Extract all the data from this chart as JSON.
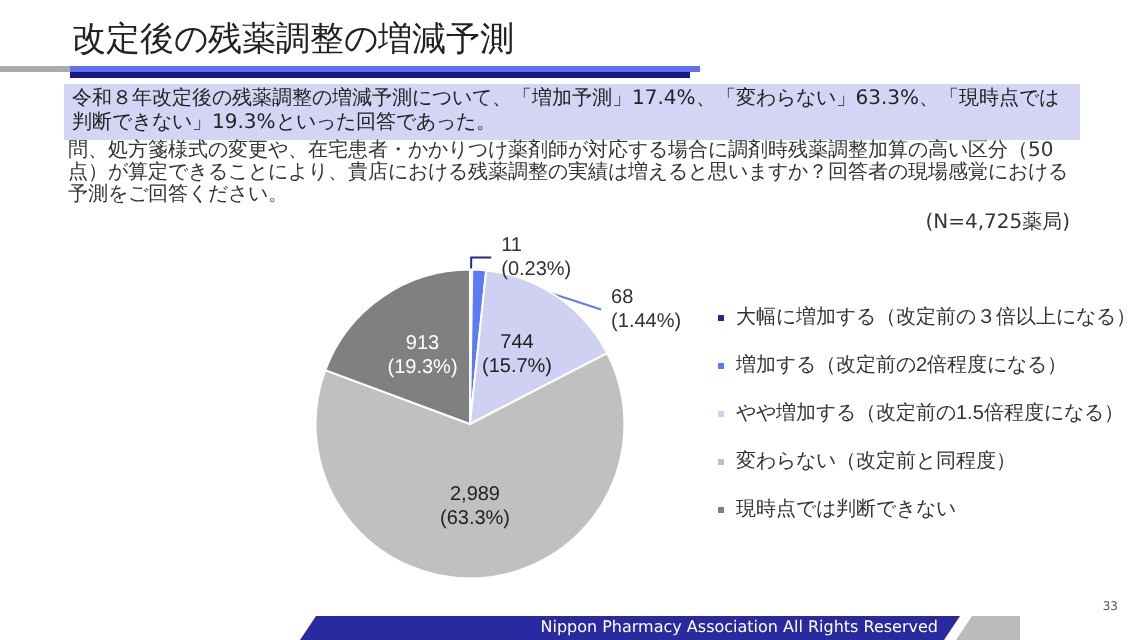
{
  "chart_data": {
    "type": "pie",
    "title": "改定後の残薬調整の増減予測",
    "subtitle": "令和８年改定後の残薬調整の増減予測について、「増加予測」17.4%、「変わらない」63.3%、「現時点では判断できない」19.3%といった回答であった。",
    "annotations": [
      "問、処方箋様式の変更や、在宅患者・かかりつけ薬剤師が対応する場合に調剤時残薬調整加算の高い区分（50点）が算定できることにより、貴店における残薬調整の実績は増えると思いますか？回答者の現場感覚における予測をご回答ください。",
      "(N=4,725薬局)",
      "Nippon Pharmacy Association All Rights Reserved",
      "33"
    ],
    "categories": [
      "大幅に増加する（改定前の３倍以上になる）",
      "増加する（改定前の2倍程度になる）",
      "やや増加する（改定前の1.5倍程度になる）",
      "変わらない（改定前と同程度）",
      "現時点では判断できない"
    ],
    "values": [
      11,
      68,
      744,
      2989,
      913
    ],
    "value_labels": [
      "11\n(0.23%)",
      "68\n(1.44%)",
      "744\n(15.7%)",
      "2,989\n(63.3%)",
      "913\n(19.3%)"
    ],
    "colors": [
      "#1f2a8c",
      "#5b7cf5",
      "#d0d0f2",
      "#c0c0c0",
      "#808080"
    ],
    "legend": "right"
  }
}
